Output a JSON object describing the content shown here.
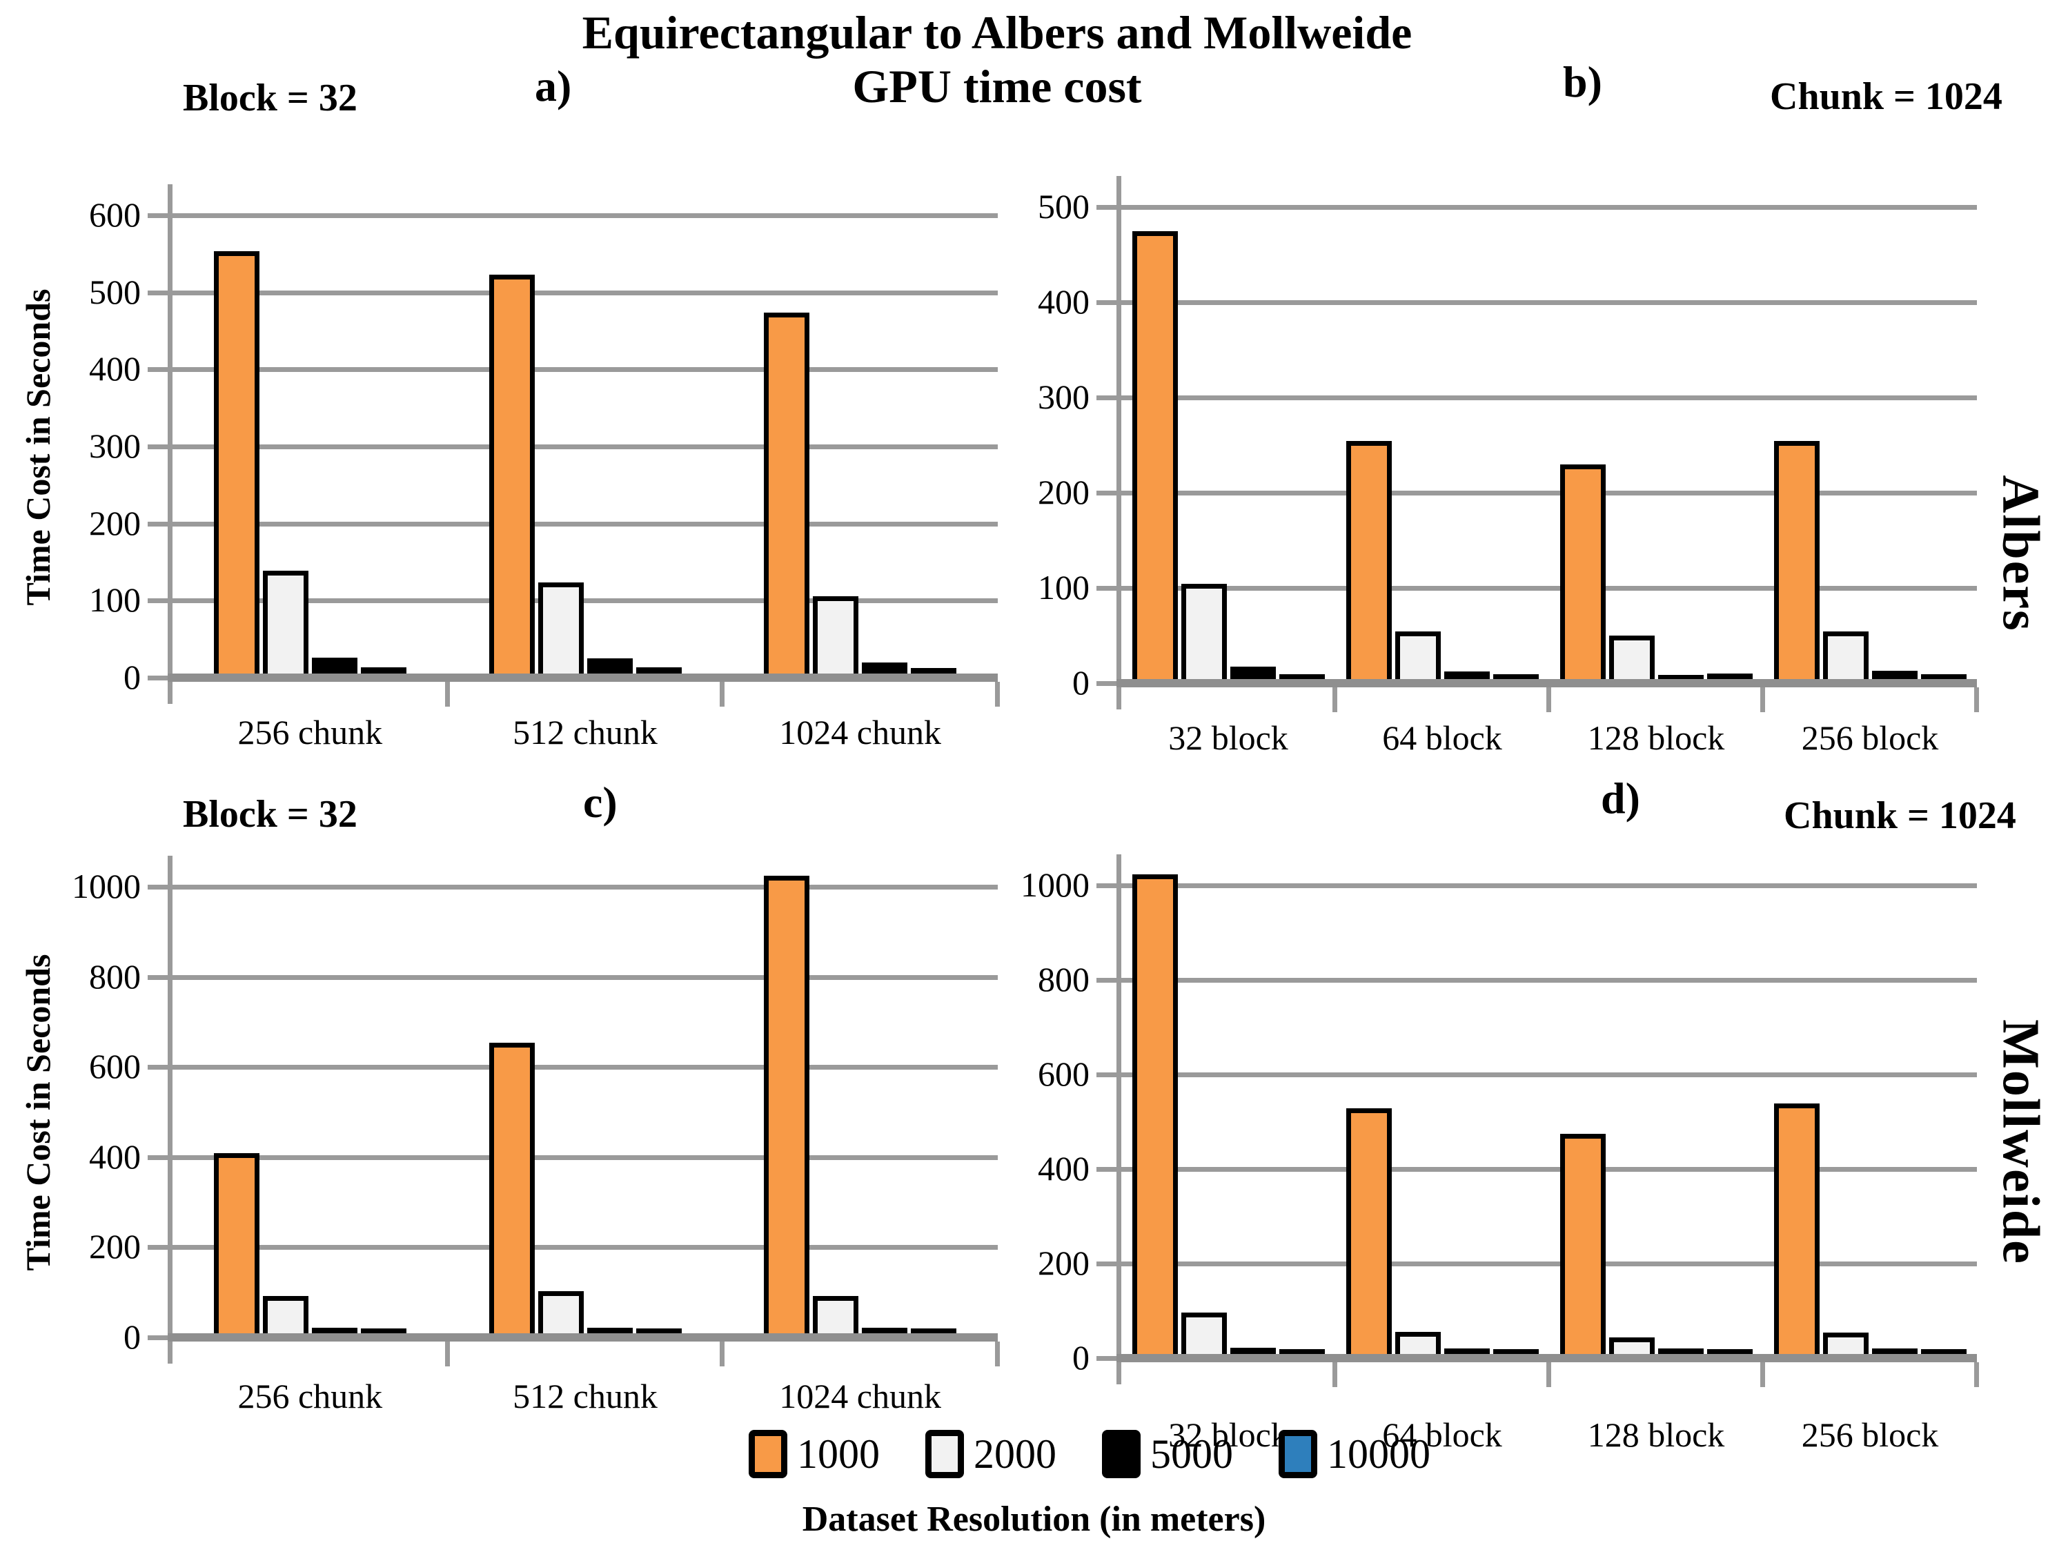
{
  "figure_title": {
    "line1": "Equirectangular to Albers and Mollweide",
    "line2": "GPU time cost"
  },
  "x_axis_title": "Dataset Resolution (in meters)",
  "row_labels": {
    "top": "Albers",
    "bottom": "Mollweide"
  },
  "legend": {
    "items": [
      {
        "label": "1000",
        "color": "#F89A47"
      },
      {
        "label": "2000",
        "color": "#F2F2F2"
      },
      {
        "label": "5000",
        "color": "#000000"
      },
      {
        "label": "10000",
        "color": "#2E7FBC"
      }
    ]
  },
  "chart_data": [
    {
      "type": "bar",
      "panel_label": "a)",
      "condition": "Block = 32",
      "projection": "Albers",
      "ylabel": "Time Cost in Seconds",
      "xlabel": "Dataset Resolution (in meters)",
      "ylim": [
        0,
        600
      ],
      "yticks": [
        0,
        100,
        200,
        300,
        400,
        500,
        600
      ],
      "grid": true,
      "series_labels": [
        "1000",
        "2000",
        "5000",
        "10000"
      ],
      "x_categories": [
        "256 chunk",
        "512 chunk",
        "1024 chunk"
      ],
      "groups": [
        {
          "category": "256 chunk",
          "values": [
            548,
            133,
            21,
            8
          ]
        },
        {
          "category": "512 chunk",
          "values": [
            518,
            118,
            20,
            8
          ]
        },
        {
          "category": "1024 chunk",
          "values": [
            468,
            100,
            14,
            7
          ]
        }
      ]
    },
    {
      "type": "bar",
      "panel_label": "b)",
      "condition": "Chunk = 1024",
      "projection": "Albers",
      "ylabel": "",
      "xlabel": "Dataset Resolution (in meters)",
      "ylim": [
        0,
        500
      ],
      "yticks": [
        0,
        100,
        200,
        300,
        400,
        500
      ],
      "grid": true,
      "series_labels": [
        "1000",
        "2000",
        "5000",
        "10000"
      ],
      "x_categories": [
        "32 block",
        "64 block",
        "128 block",
        "256 block"
      ],
      "groups": [
        {
          "category": "32 block",
          "values": [
            470,
            100,
            13,
            5
          ]
        },
        {
          "category": "64 block",
          "values": [
            250,
            50,
            8,
            5
          ]
        },
        {
          "category": "128 block",
          "values": [
            225,
            46,
            4,
            6
          ]
        },
        {
          "category": "256 block",
          "values": [
            250,
            50,
            9,
            5
          ]
        }
      ]
    },
    {
      "type": "bar",
      "panel_label": "c)",
      "condition": "Block = 32",
      "projection": "Mollweide",
      "ylabel": "Time Cost in Seconds",
      "xlabel": "Dataset Resolution (in meters)",
      "ylim": [
        0,
        1000
      ],
      "yticks": [
        0,
        200,
        400,
        600,
        800,
        1000
      ],
      "grid": true,
      "series_labels": [
        "1000",
        "2000",
        "5000",
        "10000"
      ],
      "x_categories": [
        "256 chunk",
        "512 chunk",
        "1024 chunk"
      ],
      "groups": [
        {
          "category": "256 chunk",
          "values": [
            400,
            82,
            12,
            10
          ]
        },
        {
          "category": "512 chunk",
          "values": [
            645,
            93,
            13,
            10
          ]
        },
        {
          "category": "1024 chunk",
          "values": [
            1015,
            82,
            13,
            10
          ]
        }
      ]
    },
    {
      "type": "bar",
      "panel_label": "d)",
      "condition": "Chunk = 1024",
      "projection": "Mollweide",
      "ylabel": "",
      "xlabel": "Dataset Resolution (in meters)",
      "ylim": [
        0,
        1000
      ],
      "yticks": [
        0,
        200,
        400,
        600,
        800,
        1000
      ],
      "grid": true,
      "series_labels": [
        "1000",
        "2000",
        "5000",
        "10000"
      ],
      "x_categories": [
        "32 block",
        "64 block",
        "128 block",
        "256 block"
      ],
      "groups": [
        {
          "category": "32 block",
          "values": [
            1015,
            88,
            13,
            10
          ]
        },
        {
          "category": "64 block",
          "values": [
            520,
            46,
            12,
            10
          ]
        },
        {
          "category": "128 block",
          "values": [
            465,
            35,
            11,
            10
          ]
        },
        {
          "category": "256 block",
          "values": [
            530,
            45,
            12,
            10
          ]
        }
      ]
    }
  ]
}
